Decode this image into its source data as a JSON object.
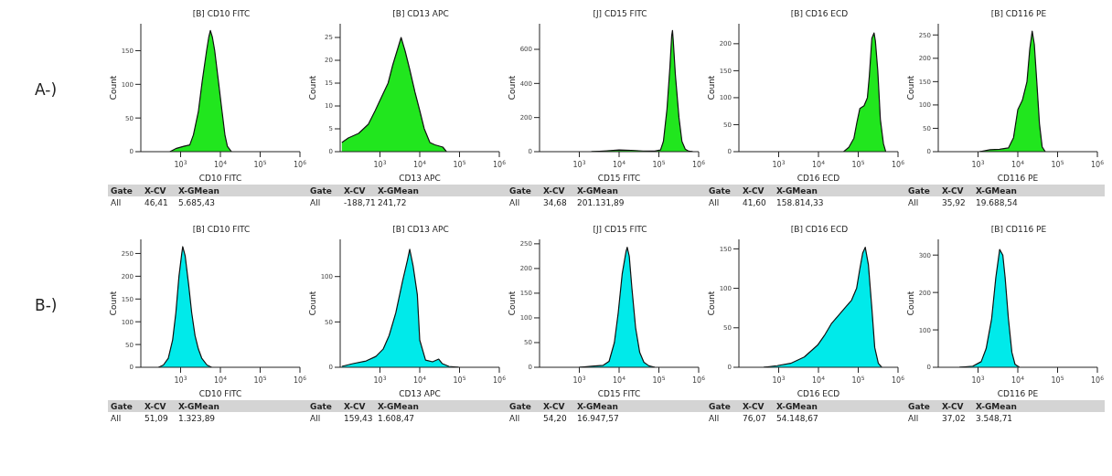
{
  "chart_data": [
    {
      "type": "area",
      "title": "[B] CD10 FITC",
      "xlabel": "CD10 FITC",
      "ylabel": "Count",
      "log": "x",
      "color": "#21e61e",
      "xlim": [
        100,
        1000000
      ],
      "ylim": [
        0,
        190
      ],
      "xticks": [
        {
          "value": 1000,
          "label": "10$^{3}$"
        },
        {
          "value": 10000,
          "label": "10$^{4}$"
        },
        {
          "value": 100000,
          "label": "10$^{5}$"
        },
        {
          "value": 1000000,
          "label": "10$^{6}$"
        }
      ],
      "yticks": [
        0,
        50,
        100,
        150
      ],
      "x": [
        540,
        790,
        1200,
        1700,
        2100,
        2800,
        3500,
        4500,
        5100,
        5600,
        6300,
        7200,
        8700,
        11000,
        13000,
        15000,
        19000
      ],
      "values": [
        0,
        5,
        8,
        10,
        25,
        60,
        105,
        150,
        170,
        180,
        170,
        150,
        110,
        60,
        25,
        8,
        0
      ],
      "annotations": [
        "Gate",
        "X-CV",
        "X-GMean",
        "All",
        "46,41",
        "5.685,43",
        "A-)"
      ]
    },
    {
      "type": "area",
      "title": "[B] CD13 APC",
      "xlabel": "CD13 APC",
      "ylabel": "Count",
      "log": "x",
      "color": "#21e61e",
      "xlim": [
        100,
        1000000
      ],
      "ylim": [
        0,
        28
      ],
      "xticks": [
        {
          "value": 1000,
          "label": "10$^{3}$"
        },
        {
          "value": 10000,
          "label": "10$^{4}$"
        },
        {
          "value": 100000,
          "label": "10$^{5}$"
        },
        {
          "value": 1000000,
          "label": "10$^{6}$"
        }
      ],
      "yticks": [
        0,
        5,
        10,
        15,
        20,
        25
      ],
      "x": [
        110,
        160,
        290,
        510,
        760,
        1100,
        1600,
        2100,
        2900,
        3400,
        4300,
        5600,
        7600,
        10000,
        13000,
        18000,
        24000,
        38000,
        47000
      ],
      "values": [
        2,
        3,
        4,
        6,
        9,
        12,
        15,
        19,
        23,
        25,
        22,
        18,
        13,
        9,
        5,
        2,
        1.5,
        1,
        0
      ],
      "annotations": [
        "Gate",
        "X-CV",
        "X-GMean",
        "All",
        "-188,71",
        "241,72"
      ]
    },
    {
      "type": "area",
      "title": "[J] CD15 FITC",
      "xlabel": "CD15 FITC",
      "ylabel": "Count",
      "log": "x",
      "color": "#21e61e",
      "xlim": [
        100,
        1000000
      ],
      "ylim": [
        0,
        750
      ],
      "xticks": [
        {
          "value": 1000,
          "label": "10$^{3}$"
        },
        {
          "value": 10000,
          "label": "10$^{4}$"
        },
        {
          "value": 100000,
          "label": "10$^{5}$"
        },
        {
          "value": 1000000,
          "label": "10$^{6}$"
        }
      ],
      "yticks": [
        0,
        200,
        400,
        600
      ],
      "x": [
        2000,
        5000,
        10000,
        20000,
        40000,
        79000,
        110000,
        130000,
        160000,
        190000,
        210000,
        220000,
        230000,
        260000,
        320000,
        380000,
        460000,
        560000,
        710000
      ],
      "values": [
        0,
        5,
        10,
        8,
        4,
        3,
        10,
        60,
        250,
        500,
        680,
        710,
        650,
        450,
        200,
        60,
        15,
        3,
        0
      ],
      "annotations": [
        "Gate",
        "X-CV",
        "X-GMean",
        "All",
        "34,68",
        "201.131,89"
      ]
    },
    {
      "type": "area",
      "title": "[B] CD16 ECD",
      "xlabel": "CD16 ECD",
      "ylabel": "Count",
      "log": "x",
      "color": "#21e61e",
      "xlim": [
        100,
        1000000
      ],
      "ylim": [
        0,
        237
      ],
      "xticks": [
        {
          "value": 1000,
          "label": "10$^{3}$"
        },
        {
          "value": 10000,
          "label": "10$^{4}$"
        },
        {
          "value": 100000,
          "label": "10$^{5}$"
        },
        {
          "value": 1000000,
          "label": "10$^{6}$"
        }
      ],
      "yticks": [
        0,
        50,
        100,
        150,
        200
      ],
      "x": [
        43000,
        58000,
        78000,
        93000,
        110000,
        140000,
        170000,
        190000,
        220000,
        250000,
        270000,
        310000,
        360000,
        430000,
        490000
      ],
      "values": [
        0,
        8,
        25,
        55,
        80,
        85,
        100,
        140,
        210,
        220,
        205,
        150,
        60,
        15,
        0
      ],
      "annotations": [
        "Gate",
        "X-CV",
        "X-GMean",
        "All",
        "41,60",
        "158.814,33"
      ]
    },
    {
      "type": "area",
      "title": "[B] CD116 PE",
      "xlabel": "CD116 PE",
      "ylabel": "Count",
      "log": "x",
      "color": "#21e61e",
      "xlim": [
        100,
        1000000
      ],
      "ylim": [
        0,
        274
      ],
      "xticks": [
        {
          "value": 1000,
          "label": "10$^{3}$"
        },
        {
          "value": 10000,
          "label": "10$^{4}$"
        },
        {
          "value": 100000,
          "label": "10$^{5}$"
        },
        {
          "value": 1000000,
          "label": "10$^{6}$"
        }
      ],
      "yticks": [
        0,
        50,
        100,
        150,
        200,
        250
      ],
      "x": [
        1100,
        2000,
        3500,
        5800,
        7800,
        10000,
        13000,
        17000,
        20000,
        23000,
        26000,
        30000,
        35000,
        41000,
        49000
      ],
      "values": [
        0,
        4,
        5,
        8,
        30,
        90,
        110,
        150,
        220,
        258,
        230,
        150,
        60,
        10,
        0
      ],
      "annotations": [
        "Gate",
        "X-CV",
        "X-GMean",
        "All",
        "35,92",
        "19.688,54"
      ]
    },
    {
      "type": "area",
      "title": "[B] CD10 FITC",
      "xlabel": "CD10 FITC",
      "ylabel": "Count",
      "log": "x",
      "color": "#00eaea",
      "xlim": [
        100,
        1000000
      ],
      "ylim": [
        0,
        281
      ],
      "xticks": [
        {
          "value": 1000,
          "label": "10$^{3}$"
        },
        {
          "value": 10000,
          "label": "10$^{4}$"
        },
        {
          "value": 100000,
          "label": "10$^{5}$"
        },
        {
          "value": 1000000,
          "label": "10$^{6}$"
        }
      ],
      "yticks": [
        0,
        50,
        100,
        150,
        200,
        250
      ],
      "x": [
        280,
        370,
        490,
        630,
        760,
        910,
        1070,
        1130,
        1300,
        1600,
        1900,
        2300,
        2800,
        3400,
        4600,
        6000
      ],
      "values": [
        0,
        5,
        20,
        60,
        120,
        200,
        250,
        265,
        245,
        180,
        120,
        70,
        40,
        20,
        5,
        0
      ],
      "annotations": [
        "Gate",
        "X-CV",
        "X-GMean",
        "All",
        "51,09",
        "1.323,89",
        "B-)"
      ]
    },
    {
      "type": "area",
      "title": "[B] CD13 APC",
      "xlabel": "CD13 APC",
      "ylabel": "Count",
      "log": "x",
      "color": "#00eaea",
      "xlim": [
        100,
        1000000
      ],
      "ylim": [
        0,
        141
      ],
      "xticks": [
        {
          "value": 1000,
          "label": "10$^{3}$"
        },
        {
          "value": 10000,
          "label": "10$^{4}$"
        },
        {
          "value": 100000,
          "label": "10$^{5}$"
        },
        {
          "value": 1000000,
          "label": "10$^{6}$"
        }
      ],
      "yticks": [
        0,
        50,
        100
      ],
      "x": [
        110,
        210,
        450,
        790,
        1200,
        1700,
        2500,
        3700,
        4900,
        5600,
        6800,
        8700,
        10000,
        14000,
        21000,
        30000,
        37000,
        54000,
        95000
      ],
      "values": [
        1,
        4,
        7,
        12,
        20,
        35,
        60,
        95,
        118,
        130,
        112,
        80,
        30,
        8,
        6,
        9,
        4,
        1,
        0
      ],
      "annotations": [
        "Gate",
        "X-CV",
        "X-GMean",
        "All",
        "159,43",
        "1.608,47"
      ]
    },
    {
      "type": "area",
      "title": "[J] CD15 FITC",
      "xlabel": "CD15 FITC",
      "ylabel": "Count",
      "log": "x",
      "color": "#00eaea",
      "xlim": [
        100,
        1000000
      ],
      "ylim": [
        0,
        259
      ],
      "xticks": [
        {
          "value": 1000,
          "label": "10$^{3}$"
        },
        {
          "value": 10000,
          "label": "10$^{4}$"
        },
        {
          "value": 100000,
          "label": "10$^{5}$"
        },
        {
          "value": 1000000,
          "label": "10$^{6}$"
        }
      ],
      "yticks": [
        0,
        50,
        100,
        150,
        200,
        250
      ],
      "x": [
        1000,
        2000,
        4000,
        5600,
        7600,
        9500,
        12000,
        15000,
        16000,
        18000,
        21000,
        26000,
        33000,
        42000,
        56000,
        79000
      ],
      "values": [
        0,
        2,
        4,
        12,
        50,
        110,
        190,
        235,
        243,
        225,
        160,
        80,
        30,
        10,
        3,
        0
      ],
      "annotations": [
        "Gate",
        "X-CV",
        "X-GMean",
        "All",
        "54,20",
        "16.947,57"
      ]
    },
    {
      "type": "area",
      "title": "[B] CD16 ECD",
      "xlabel": "CD16 ECD",
      "ylabel": "Count",
      "log": "x",
      "color": "#00eaea",
      "xlim": [
        100,
        1000000
      ],
      "ylim": [
        0,
        162
      ],
      "xticks": [
        {
          "value": 1000,
          "label": "10$^{3}$"
        },
        {
          "value": 10000,
          "label": "10$^{4}$"
        },
        {
          "value": 100000,
          "label": "10$^{5}$"
        },
        {
          "value": 1000000,
          "label": "10$^{6}$"
        }
      ],
      "yticks": [
        0,
        50,
        100,
        150
      ],
      "x": [
        420,
        910,
        2000,
        4400,
        9500,
        14000,
        21000,
        31000,
        46000,
        68000,
        91000,
        110000,
        130000,
        150000,
        180000,
        220000,
        260000,
        320000,
        390000
      ],
      "values": [
        0,
        2,
        5,
        13,
        28,
        40,
        55,
        65,
        75,
        85,
        100,
        125,
        145,
        152,
        130,
        75,
        25,
        5,
        0
      ],
      "annotations": [
        "Gate",
        "X-CV",
        "X-GMean",
        "All",
        "76,07",
        "54.148,67"
      ]
    },
    {
      "type": "area",
      "title": "[B] CD116 PE",
      "xlabel": "CD116 PE",
      "ylabel": "Count",
      "log": "x",
      "color": "#00eaea",
      "xlim": [
        100,
        1000000
      ],
      "ylim": [
        0,
        342
      ],
      "xticks": [
        {
          "value": 1000,
          "label": "10$^{3}$"
        },
        {
          "value": 10000,
          "label": "10$^{4}$"
        },
        {
          "value": 100000,
          "label": "10$^{5}$"
        },
        {
          "value": 1000000,
          "label": "10$^{6}$"
        }
      ],
      "yticks": [
        0,
        100,
        200,
        300
      ],
      "x": [
        340,
        740,
        1200,
        1600,
        2200,
        2800,
        3500,
        4200,
        4800,
        5800,
        7100,
        8500,
        11000
      ],
      "values": [
        0,
        3,
        15,
        50,
        130,
        240,
        315,
        300,
        240,
        130,
        40,
        8,
        0
      ],
      "annotations": [
        "Gate",
        "X-CV",
        "X-GMean",
        "All",
        "37,02",
        "3.548,71"
      ]
    }
  ]
}
